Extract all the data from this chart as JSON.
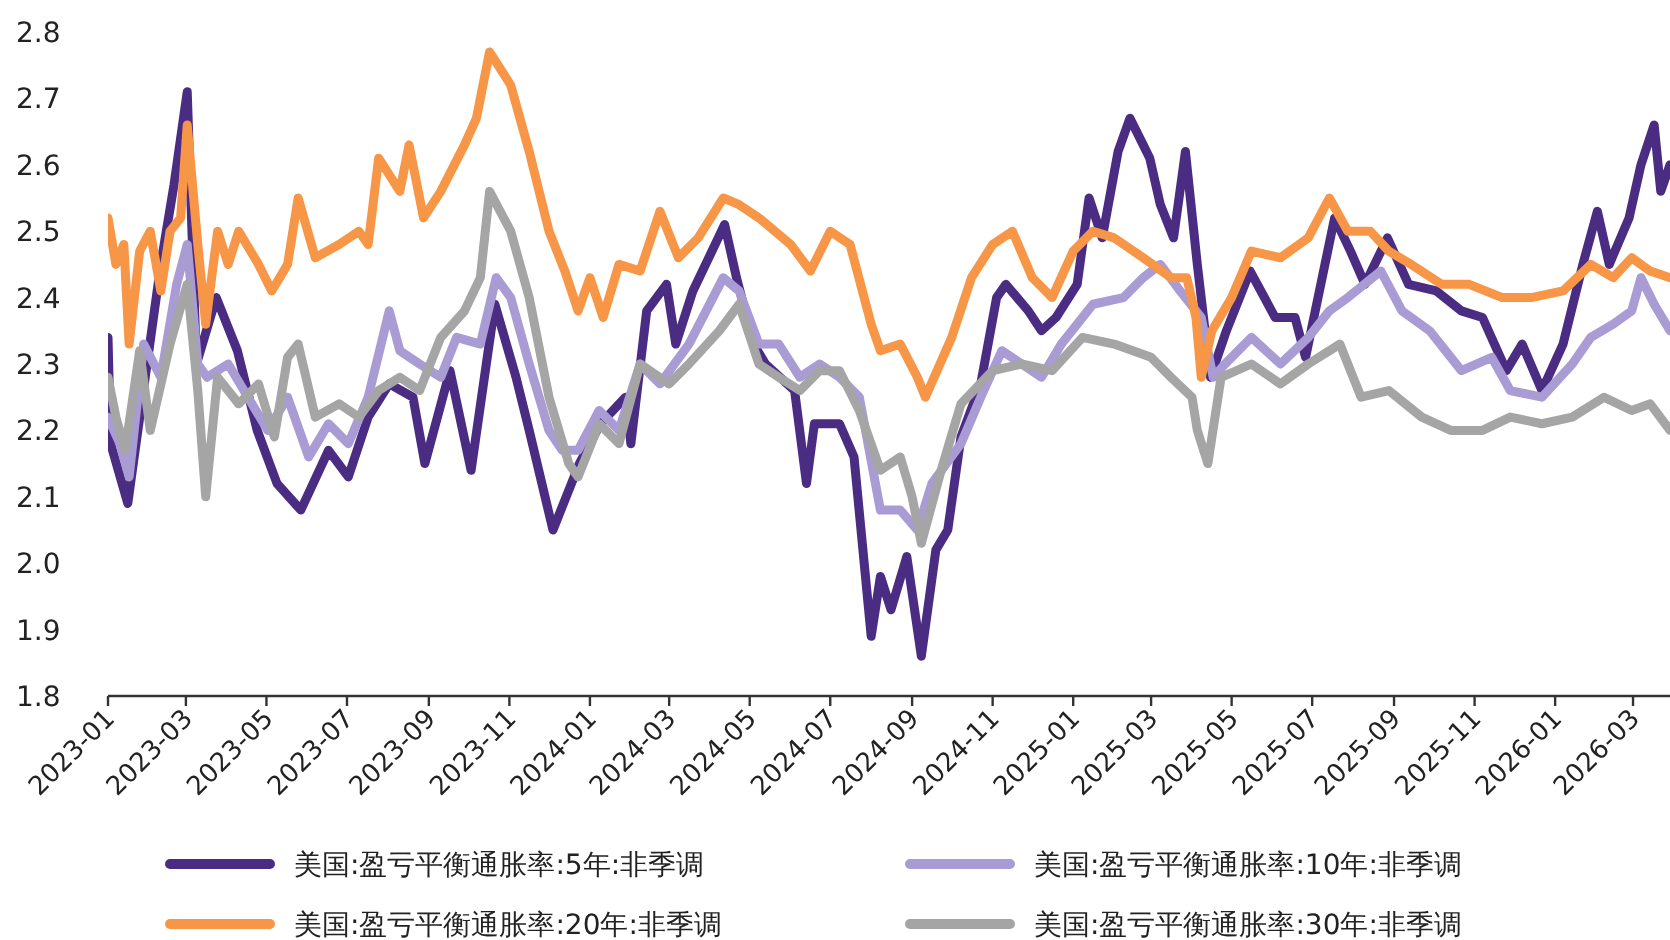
{
  "chart_data": {
    "type": "line",
    "xlim": [
      "2023-01-01",
      "2026-03-29"
    ],
    "ylim": [
      1.8,
      2.8
    ],
    "yticks": [
      1.8,
      1.9,
      {
        "value": 2.0,
        "label": "2.0"
      },
      2.1,
      2.2,
      2.3,
      2.4,
      2.5,
      2.6,
      2.7,
      2.8
    ],
    "xticks": [
      {
        "value": "2023-01-01",
        "label": "2023-01"
      },
      {
        "value": "2023-03-01",
        "label": "2023-03"
      },
      {
        "value": "2023-05-01",
        "label": "2023-05"
      },
      {
        "value": "2023-07-01",
        "label": "2023-07"
      },
      {
        "value": "2023-09-01",
        "label": "2023-09"
      },
      {
        "value": "2023-11-01",
        "label": "2023-11"
      },
      {
        "value": "2024-01-01",
        "label": "2024-01"
      },
      {
        "value": "2024-03-01",
        "label": "2024-03"
      },
      {
        "value": "2024-05-01",
        "label": "2024-05"
      },
      {
        "value": "2024-07-01",
        "label": "2024-07"
      },
      {
        "value": "2024-09-01",
        "label": "2024-09"
      },
      {
        "value": "2024-11-01",
        "label": "2024-11"
      },
      {
        "value": "2025-01-01",
        "label": "2025-01"
      },
      {
        "value": "2025-03-01",
        "label": "2025-03"
      },
      {
        "value": "2025-05-01",
        "label": "2025-05"
      },
      {
        "value": "2025-07-01",
        "label": "2025-07"
      },
      {
        "value": "2025-09-01",
        "label": "2025-09"
      },
      {
        "value": "2025-11-01",
        "label": "2025-11"
      },
      {
        "value": "2026-01-01",
        "label": "2026-01"
      },
      {
        "value": "2026-03-01",
        "label": "2026-03"
      }
    ],
    "grid": false,
    "legend": "bottom",
    "line_style": "solid",
    "series": [
      {
        "name": "美国:盈亏平衡通胀率:5年:非季调",
        "color": "#4b2c83",
        "x": [
          "2023-01-01",
          "2023-01-03",
          "2023-01-16",
          "2023-02-10",
          "2023-02-20",
          "2023-03-02",
          "2023-03-09",
          "2023-03-24",
          "2023-04-09",
          "2023-04-24",
          "2023-05-09",
          "2023-05-27",
          "2023-06-17",
          "2023-07-02",
          "2023-07-17",
          "2023-08-02",
          "2023-08-20",
          "2023-08-29",
          "2023-09-17",
          "2023-10-03",
          "2023-10-21",
          "2023-11-06",
          "2023-11-16",
          "2023-12-04",
          "2023-12-24",
          "2024-01-09",
          "2024-01-28",
          "2024-02-01",
          "2024-02-13",
          "2024-02-28",
          "2024-03-06",
          "2024-03-19",
          "2024-04-12",
          "2024-04-21",
          "2024-05-04",
          "2024-05-13",
          "2024-06-04",
          "2024-06-13",
          "2024-06-19",
          "2024-07-08",
          "2024-07-19",
          "2024-08-01",
          "2024-08-08",
          "2024-08-16",
          "2024-08-28",
          "2024-09-08",
          "2024-09-19",
          "2024-09-28",
          "2024-10-08",
          "2024-10-23",
          "2024-11-04",
          "2024-11-11",
          "2024-11-28",
          "2024-12-08",
          "2024-12-19",
          "2025-01-04",
          "2025-01-13",
          "2025-01-23",
          "2025-02-04",
          "2025-02-13",
          "2025-02-23",
          "2025-02-28",
          "2025-03-08",
          "2025-03-18",
          "2025-03-27",
          "2025-04-05",
          "2025-04-15",
          "2025-04-27",
          "2025-05-15",
          "2025-06-03",
          "2025-06-18",
          "2025-06-26",
          "2025-07-18",
          "2025-07-30",
          "2025-08-10",
          "2025-08-27",
          "2025-09-12",
          "2025-10-03",
          "2025-10-22",
          "2025-11-07",
          "2025-11-25",
          "2025-12-07",
          "2025-12-22",
          "2026-01-07",
          "2026-01-22",
          "2026-02-02",
          "2026-02-11",
          "2026-02-26",
          "2026-03-07",
          "2026-03-17",
          "2026-03-22",
          "2026-03-29"
        ],
        "values": [
          2.34,
          2.18,
          2.09,
          2.45,
          2.57,
          2.71,
          2.3,
          2.4,
          2.32,
          2.2,
          2.12,
          2.08,
          2.17,
          2.13,
          2.22,
          2.27,
          2.25,
          2.15,
          2.29,
          2.14,
          2.39,
          2.28,
          2.2,
          2.05,
          2.15,
          2.21,
          2.25,
          2.18,
          2.38,
          2.42,
          2.33,
          2.41,
          2.51,
          2.43,
          2.33,
          2.3,
          2.26,
          2.12,
          2.21,
          2.21,
          2.16,
          1.89,
          1.98,
          1.93,
          2.01,
          1.86,
          2.02,
          2.05,
          2.19,
          2.27,
          2.4,
          2.42,
          2.38,
          2.35,
          2.37,
          2.42,
          2.55,
          2.49,
          2.62,
          2.67,
          2.63,
          2.61,
          2.54,
          2.49,
          2.62,
          2.45,
          2.28,
          2.35,
          2.44,
          2.37,
          2.37,
          2.31,
          2.52,
          2.47,
          2.42,
          2.49,
          2.42,
          2.41,
          2.38,
          2.37,
          2.29,
          2.33,
          2.26,
          2.33,
          2.45,
          2.53,
          2.45,
          2.52,
          2.6,
          2.66,
          2.56,
          2.6
        ]
      },
      {
        "name": "美国:盈亏平衡通胀率:10年:非季调",
        "color": "#a99bd3",
        "x": [
          "2023-01-01",
          "2023-01-10",
          "2023-01-17",
          "2023-01-28",
          "2023-02-10",
          "2023-02-22",
          "2023-03-02",
          "2023-03-10",
          "2023-03-17",
          "2023-04-02",
          "2023-04-17",
          "2023-05-02",
          "2023-05-17",
          "2023-06-02",
          "2023-06-17",
          "2023-07-02",
          "2023-07-17",
          "2023-08-02",
          "2023-08-10",
          "2023-08-25",
          "2023-09-10",
          "2023-09-22",
          "2023-10-10",
          "2023-10-22",
          "2023-11-02",
          "2023-11-16",
          "2023-12-01",
          "2023-12-11",
          "2023-12-23",
          "2024-01-08",
          "2024-01-23",
          "2024-02-08",
          "2024-02-23",
          "2024-03-16",
          "2024-04-11",
          "2024-04-23",
          "2024-05-08",
          "2024-05-23",
          "2024-06-08",
          "2024-06-23",
          "2024-07-08",
          "2024-07-23",
          "2024-08-08",
          "2024-08-23",
          "2024-09-05",
          "2024-09-16",
          "2024-10-08",
          "2024-10-23",
          "2024-11-08",
          "2024-11-23",
          "2024-12-08",
          "2024-12-23",
          "2025-01-16",
          "2025-02-08",
          "2025-02-23",
          "2025-03-08",
          "2025-03-23",
          "2025-04-08",
          "2025-04-17",
          "2025-04-26",
          "2025-05-16",
          "2025-06-07",
          "2025-06-28",
          "2025-07-14",
          "2025-07-28",
          "2025-08-22",
          "2025-09-07",
          "2025-09-28",
          "2025-10-22",
          "2025-11-14",
          "2025-11-28",
          "2025-12-22",
          "2026-01-14",
          "2026-01-28",
          "2026-02-14",
          "2026-02-28",
          "2026-03-07",
          "2026-03-17",
          "2026-03-29"
        ],
        "values": [
          2.22,
          2.18,
          2.13,
          2.33,
          2.28,
          2.42,
          2.48,
          2.3,
          2.28,
          2.3,
          2.25,
          2.2,
          2.25,
          2.16,
          2.21,
          2.18,
          2.25,
          2.38,
          2.32,
          2.3,
          2.28,
          2.34,
          2.33,
          2.43,
          2.4,
          2.3,
          2.2,
          2.17,
          2.17,
          2.23,
          2.2,
          2.3,
          2.27,
          2.33,
          2.43,
          2.41,
          2.33,
          2.33,
          2.28,
          2.3,
          2.28,
          2.25,
          2.08,
          2.08,
          2.05,
          2.12,
          2.18,
          2.25,
          2.32,
          2.3,
          2.28,
          2.33,
          2.39,
          2.4,
          2.43,
          2.45,
          2.41,
          2.37,
          2.28,
          2.3,
          2.34,
          2.3,
          2.34,
          2.38,
          2.4,
          2.44,
          2.38,
          2.35,
          2.29,
          2.31,
          2.26,
          2.25,
          2.3,
          2.34,
          2.36,
          2.38,
          2.43,
          2.39,
          2.35
        ]
      },
      {
        "name": "美国:盈亏平衡通胀率:20年:非季调",
        "color": "#f79646",
        "x": [
          "2023-01-01",
          "2023-01-07",
          "2023-01-13",
          "2023-01-17",
          "2023-01-25",
          "2023-02-02",
          "2023-02-10",
          "2023-02-17",
          "2023-02-25",
          "2023-03-02",
          "2023-03-10",
          "2023-03-16",
          "2023-03-25",
          "2023-04-02",
          "2023-04-10",
          "2023-04-25",
          "2023-05-05",
          "2023-05-17",
          "2023-05-25",
          "2023-06-07",
          "2023-06-25",
          "2023-07-10",
          "2023-07-17",
          "2023-07-25",
          "2023-08-10",
          "2023-08-17",
          "2023-08-28",
          "2023-09-10",
          "2023-09-28",
          "2023-10-07",
          "2023-10-17",
          "2023-11-02",
          "2023-11-16",
          "2023-12-01",
          "2023-12-13",
          "2023-12-23",
          "2024-01-01",
          "2024-01-11",
          "2024-01-23",
          "2024-02-08",
          "2024-02-23",
          "2024-03-08",
          "2024-03-23",
          "2024-04-11",
          "2024-04-23",
          "2024-05-08",
          "2024-06-01",
          "2024-06-16",
          "2024-07-01",
          "2024-07-16",
          "2024-08-01",
          "2024-08-08",
          "2024-08-23",
          "2024-09-05",
          "2024-09-11",
          "2024-10-01",
          "2024-10-16",
          "2024-11-01",
          "2024-11-16",
          "2024-12-01",
          "2024-12-16",
          "2025-01-01",
          "2025-01-16",
          "2025-02-01",
          "2025-02-23",
          "2025-03-16",
          "2025-03-28",
          "2025-04-04",
          "2025-04-08",
          "2025-04-16",
          "2025-05-01",
          "2025-05-16",
          "2025-06-07",
          "2025-06-28",
          "2025-07-14",
          "2025-07-28",
          "2025-08-14",
          "2025-08-28",
          "2025-09-14",
          "2025-10-07",
          "2025-10-28",
          "2025-11-22",
          "2025-12-14",
          "2026-01-07",
          "2026-01-28",
          "2026-02-14",
          "2026-02-28",
          "2026-03-14",
          "2026-03-29"
        ],
        "values": [
          2.52,
          2.45,
          2.48,
          2.33,
          2.47,
          2.5,
          2.41,
          2.5,
          2.52,
          2.66,
          2.48,
          2.36,
          2.5,
          2.45,
          2.5,
          2.45,
          2.41,
          2.45,
          2.55,
          2.46,
          2.48,
          2.5,
          2.48,
          2.61,
          2.56,
          2.63,
          2.52,
          2.56,
          2.63,
          2.67,
          2.77,
          2.72,
          2.62,
          2.5,
          2.44,
          2.38,
          2.43,
          2.37,
          2.45,
          2.44,
          2.53,
          2.46,
          2.49,
          2.55,
          2.54,
          2.52,
          2.48,
          2.44,
          2.5,
          2.48,
          2.36,
          2.32,
          2.33,
          2.28,
          2.25,
          2.34,
          2.43,
          2.48,
          2.5,
          2.43,
          2.4,
          2.47,
          2.5,
          2.49,
          2.46,
          2.43,
          2.43,
          2.37,
          2.28,
          2.35,
          2.4,
          2.47,
          2.46,
          2.49,
          2.55,
          2.5,
          2.5,
          2.47,
          2.45,
          2.42,
          2.42,
          2.4,
          2.4,
          2.41,
          2.45,
          2.43,
          2.46,
          2.44,
          2.43
        ]
      },
      {
        "name": "美国:盈亏平衡通胀率:30年:非季调",
        "color": "#a5a5a5",
        "x": [
          "2023-01-01",
          "2023-01-07",
          "2023-01-14",
          "2023-01-25",
          "2023-02-02",
          "2023-02-17",
          "2023-03-02",
          "2023-03-10",
          "2023-03-16",
          "2023-03-25",
          "2023-04-10",
          "2023-04-25",
          "2023-05-07",
          "2023-05-17",
          "2023-05-25",
          "2023-06-07",
          "2023-06-25",
          "2023-07-10",
          "2023-07-25",
          "2023-08-10",
          "2023-08-25",
          "2023-09-10",
          "2023-09-28",
          "2023-10-10",
          "2023-10-17",
          "2023-11-02",
          "2023-11-16",
          "2023-12-01",
          "2023-12-16",
          "2023-12-23",
          "2024-01-08",
          "2024-01-23",
          "2024-02-08",
          "2024-03-01",
          "2024-03-16",
          "2024-04-08",
          "2024-04-23",
          "2024-05-08",
          "2024-05-23",
          "2024-06-08",
          "2024-06-23",
          "2024-07-08",
          "2024-07-23",
          "2024-08-08",
          "2024-08-23",
          "2024-09-01",
          "2024-09-08",
          "2024-09-23",
          "2024-10-08",
          "2024-11-01",
          "2024-11-23",
          "2024-12-16",
          "2025-01-08",
          "2025-02-01",
          "2025-03-01",
          "2025-03-16",
          "2025-04-01",
          "2025-04-05",
          "2025-04-13",
          "2025-04-23",
          "2025-05-16",
          "2025-06-07",
          "2025-06-28",
          "2025-07-22",
          "2025-08-07",
          "2025-08-28",
          "2025-09-22",
          "2025-10-14",
          "2025-11-07",
          "2025-11-28",
          "2025-12-22",
          "2026-01-14",
          "2026-02-07",
          "2026-02-28",
          "2026-03-14",
          "2026-03-29"
        ],
        "values": [
          2.28,
          2.22,
          2.17,
          2.32,
          2.2,
          2.33,
          2.42,
          2.26,
          2.1,
          2.28,
          2.24,
          2.27,
          2.19,
          2.31,
          2.33,
          2.22,
          2.24,
          2.22,
          2.26,
          2.28,
          2.26,
          2.34,
          2.38,
          2.43,
          2.56,
          2.5,
          2.4,
          2.25,
          2.15,
          2.13,
          2.21,
          2.18,
          2.3,
          2.27,
          2.3,
          2.35,
          2.39,
          2.3,
          2.28,
          2.26,
          2.29,
          2.29,
          2.23,
          2.14,
          2.16,
          2.1,
          2.03,
          2.14,
          2.24,
          2.29,
          2.3,
          2.29,
          2.34,
          2.33,
          2.31,
          2.28,
          2.25,
          2.2,
          2.15,
          2.28,
          2.3,
          2.27,
          2.3,
          2.33,
          2.25,
          2.26,
          2.22,
          2.2,
          2.2,
          2.22,
          2.21,
          2.22,
          2.25,
          2.23,
          2.24,
          2.2
        ]
      }
    ]
  }
}
